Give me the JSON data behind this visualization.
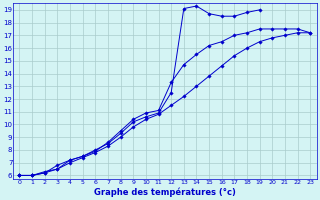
{
  "xlabel": "Graphe des températures (°c)",
  "bg_color": "#d4f4f4",
  "grid_color": "#aacccc",
  "line_color": "#0000cc",
  "xlim": [
    -0.5,
    23.5
  ],
  "ylim": [
    5.7,
    19.5
  ],
  "xticks": [
    0,
    1,
    2,
    3,
    4,
    5,
    6,
    7,
    8,
    9,
    10,
    11,
    12,
    13,
    14,
    15,
    16,
    17,
    18,
    19,
    20,
    21,
    22,
    23
  ],
  "yticks": [
    6,
    7,
    8,
    9,
    10,
    11,
    12,
    13,
    14,
    15,
    16,
    17,
    18,
    19
  ],
  "s1_x": [
    0,
    1,
    2,
    3,
    4,
    5,
    6,
    7,
    8,
    9,
    10,
    11,
    12,
    13,
    14,
    15,
    16,
    17,
    18,
    19
  ],
  "s1_y": [
    6.0,
    6.0,
    6.2,
    6.8,
    7.2,
    7.5,
    8.0,
    8.5,
    9.3,
    10.2,
    10.6,
    10.9,
    12.5,
    19.1,
    19.3,
    18.7,
    18.5,
    18.5,
    18.8,
    19.0
  ],
  "s2_x": [
    0,
    1,
    2,
    3,
    4,
    5,
    6,
    7,
    8,
    9,
    10,
    11,
    12,
    13,
    14,
    15,
    16,
    17,
    18,
    19,
    20,
    21,
    22,
    23
  ],
  "s2_y": [
    6.0,
    6.0,
    6.3,
    6.5,
    7.2,
    7.5,
    7.9,
    8.6,
    9.5,
    10.4,
    10.9,
    11.1,
    13.3,
    14.7,
    15.5,
    16.2,
    16.5,
    17.0,
    17.2,
    17.5,
    17.5,
    17.5,
    17.5,
    17.2
  ],
  "s3_x": [
    0,
    1,
    2,
    3,
    4,
    5,
    6,
    7,
    8,
    9,
    10,
    11,
    12,
    13,
    14,
    15,
    16,
    17,
    18,
    19,
    20,
    21,
    22,
    23
  ],
  "s3_y": [
    6.0,
    6.0,
    6.2,
    6.5,
    7.0,
    7.4,
    7.8,
    8.3,
    9.0,
    9.8,
    10.4,
    10.8,
    11.5,
    12.2,
    13.0,
    13.8,
    14.6,
    15.4,
    16.0,
    16.5,
    16.8,
    17.0,
    17.2,
    17.2
  ]
}
